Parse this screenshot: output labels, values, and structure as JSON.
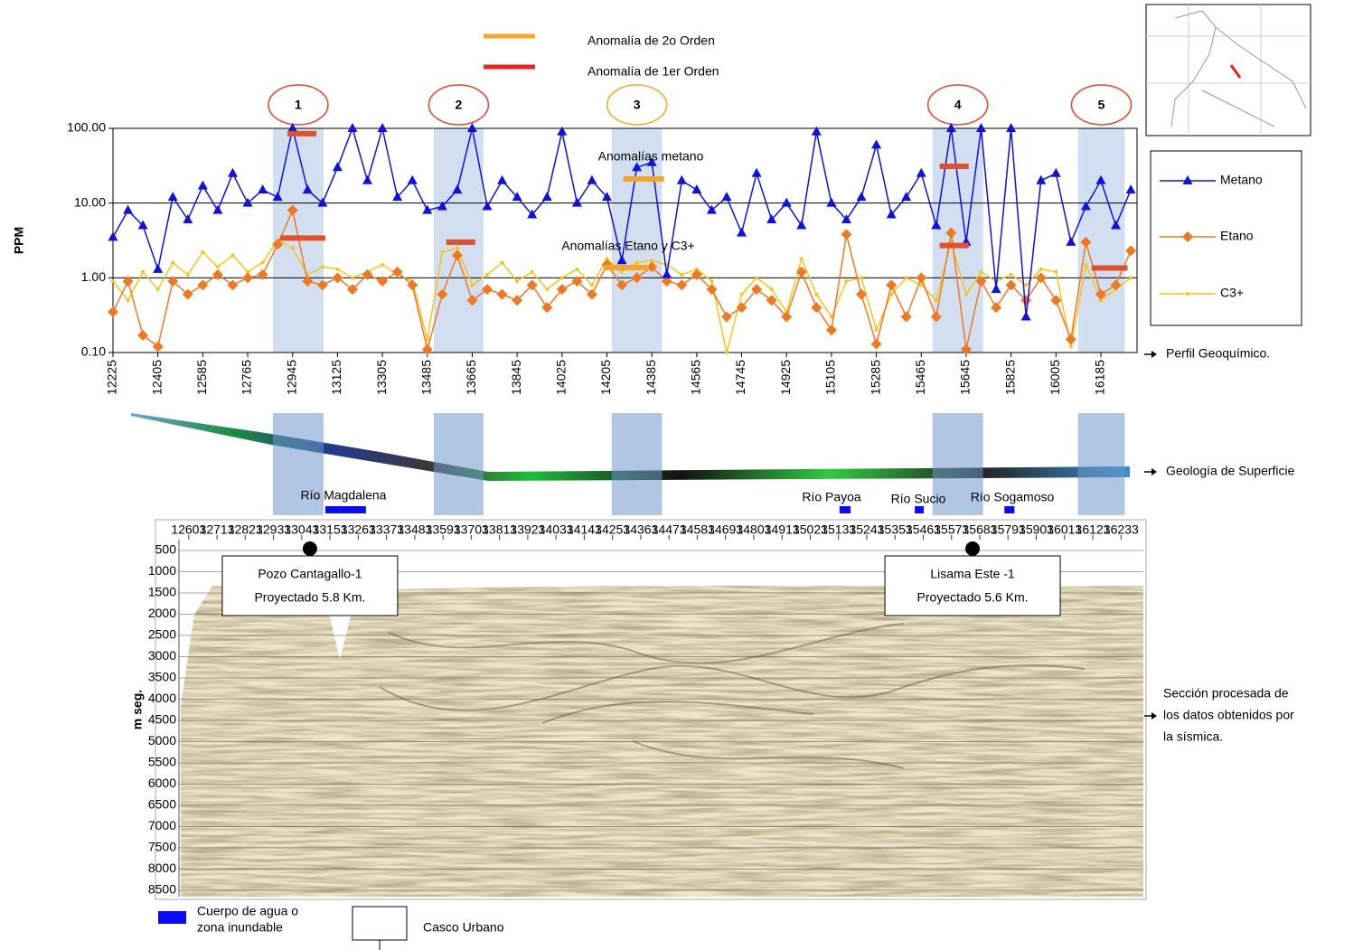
{
  "legend_top": [
    {
      "label": "Anomalía de 2o Orden",
      "color": "#f5a623"
    },
    {
      "label": "Anomalía de 1er Orden",
      "color": "#e8231a"
    }
  ],
  "chart_data": [
    {
      "type": "line",
      "ylabel": "PPM",
      "log_scale": true,
      "grid": true,
      "legend": "right",
      "xlim": [
        12225,
        16330
      ],
      "xticks": [
        12225,
        12405,
        12585,
        12765,
        12945,
        13125,
        13305,
        13485,
        13665,
        13845,
        14025,
        14205,
        14385,
        14565,
        14745,
        14925,
        15105,
        15285,
        15465,
        15645,
        15825,
        16005,
        16185
      ],
      "ylim": [
        0.1,
        100
      ],
      "yticks": [
        {
          "value": 0.1,
          "label": "0.10"
        },
        {
          "value": 1,
          "label": "1.00"
        },
        {
          "value": 10,
          "label": "10.00"
        },
        {
          "value": 100,
          "label": "100.00"
        }
      ],
      "x": [
        12225,
        12285,
        12345,
        12405,
        12465,
        12525,
        12585,
        12645,
        12705,
        12765,
        12825,
        12885,
        12945,
        13005,
        13065,
        13125,
        13185,
        13245,
        13305,
        13365,
        13425,
        13485,
        13545,
        13605,
        13665,
        13725,
        13785,
        13845,
        13905,
        13965,
        14025,
        14085,
        14145,
        14205,
        14265,
        14325,
        14385,
        14445,
        14505,
        14565,
        14625,
        14685,
        14745,
        14805,
        14865,
        14925,
        14985,
        15045,
        15105,
        15165,
        15225,
        15285,
        15345,
        15405,
        15465,
        15525,
        15585,
        15645,
        15705,
        15765,
        15825,
        15885,
        15945,
        16005,
        16065,
        16125,
        16185,
        16245,
        16305
      ],
      "series": [
        {
          "name": "C3+",
          "color": "#f5c518",
          "marker": "circle",
          "values": [
            0.9,
            0.5,
            1.2,
            0.7,
            1.6,
            1.1,
            2.2,
            1.4,
            2.0,
            1.2,
            1.6,
            3.2,
            2.5,
            1.1,
            1.4,
            1.3,
            1.0,
            1.2,
            1.5,
            1.1,
            0.9,
            0.15,
            2.2,
            2.5,
            0.8,
            1.1,
            1.6,
            0.9,
            1.2,
            0.7,
            1.0,
            1.3,
            0.8,
            1.8,
            1.2,
            1.6,
            1.7,
            1.5,
            1.1,
            1.3,
            0.9,
            0.1,
            0.6,
            1.0,
            0.7,
            0.35,
            1.8,
            0.6,
            0.3,
            0.9,
            1.0,
            0.2,
            0.6,
            1.0,
            0.8,
            0.5,
            3.0,
            0.6,
            1.2,
            0.9,
            1.1,
            0.8,
            1.3,
            1.2,
            0.12,
            1.5,
            0.5,
            0.7,
            1.0
          ]
        },
        {
          "name": "Etano",
          "color": "#f07820",
          "marker": "diamond",
          "values": [
            0.35,
            0.9,
            0.17,
            0.12,
            0.9,
            0.6,
            0.8,
            1.1,
            0.8,
            1.0,
            1.1,
            2.8,
            8,
            0.9,
            0.8,
            1.0,
            0.7,
            1.1,
            0.9,
            1.2,
            0.8,
            0.11,
            0.6,
            2.0,
            0.5,
            0.7,
            0.6,
            0.5,
            0.8,
            0.4,
            0.7,
            0.9,
            0.6,
            1.5,
            0.8,
            1.0,
            1.4,
            0.9,
            0.8,
            1.1,
            0.7,
            0.3,
            0.4,
            0.7,
            0.5,
            0.3,
            1.2,
            0.4,
            0.2,
            3.8,
            0.6,
            0.13,
            0.8,
            0.3,
            1.0,
            0.3,
            4.0,
            0.11,
            0.9,
            0.4,
            0.8,
            0.5,
            1.0,
            0.5,
            0.15,
            3.0,
            0.6,
            0.8,
            2.3
          ]
        },
        {
          "name": "Metano",
          "color": "#1010e0",
          "marker": "triangle",
          "values": [
            3.5,
            8,
            5,
            1.3,
            12,
            6,
            17,
            8,
            25,
            10,
            15,
            12,
            100,
            15,
            10,
            30,
            100,
            20,
            100,
            12,
            20,
            8,
            9,
            15,
            100,
            9,
            20,
            12,
            7,
            12,
            90,
            10,
            20,
            12,
            1.7,
            30,
            35,
            1.1,
            20,
            15,
            8,
            12,
            4,
            25,
            6,
            10,
            5,
            90,
            10,
            6,
            12,
            60,
            7,
            12,
            25,
            5,
            100,
            3,
            100,
            0.7,
            100,
            0.3,
            20,
            25,
            3,
            9,
            20,
            5,
            15
          ]
        }
      ],
      "bands": [
        {
          "label": "1",
          "x": [
            12866,
            13069
          ],
          "color": "#e8432a"
        },
        {
          "label": "2",
          "x": [
            13511,
            13710
          ],
          "color": "#e8432a"
        },
        {
          "label": "3",
          "x": [
            14224,
            14426
          ],
          "color": "#f5a623"
        },
        {
          "label": "4",
          "x": [
            15510,
            15713
          ],
          "color": "#e8432a"
        },
        {
          "label": "5",
          "x": [
            16093,
            16281
          ],
          "color": "#e8432a"
        }
      ],
      "anomalies": [
        {
          "x": [
            12924,
            13040
          ],
          "value": 85,
          "color": "#e0502a"
        },
        {
          "x": [
            12895,
            13076
          ],
          "value": 3.4,
          "color": "#e0502a"
        },
        {
          "x": [
            13561,
            13677
          ],
          "value": 3.0,
          "color": "#e0502a"
        },
        {
          "x": [
            14271,
            14434
          ],
          "value": 21,
          "color": "#f5a623"
        },
        {
          "x": [
            14192,
            14373
          ],
          "value": 1.37,
          "color": "#f5a623"
        },
        {
          "x": [
            15539,
            15655
          ],
          "value": 31,
          "color": "#e0502a"
        },
        {
          "x": [
            15539,
            15655
          ],
          "value": 2.7,
          "color": "#e0502a"
        },
        {
          "x": [
            16148,
            16292
          ],
          "value": 1.35,
          "color": "#e0502a"
        }
      ],
      "annotations": [
        "Anomalías metano",
        "Anomalías Etano y C3+"
      ]
    },
    {
      "type": "seismic",
      "ylabel": "m seg.",
      "xlim": [
        12565,
        16320
      ],
      "xticks": [
        12603,
        12713,
        12823,
        12933,
        13043,
        13153,
        13263,
        13373,
        13483,
        13593,
        13703,
        13813,
        13923,
        14033,
        14143,
        14253,
        14363,
        14473,
        14583,
        14693,
        14803,
        14913,
        15023,
        15133,
        15243,
        15353,
        15463,
        15573,
        15683,
        15793,
        15903,
        16013,
        16123,
        16233
      ],
      "ylim": [
        245,
        8650
      ],
      "yticks": [
        500,
        1000,
        1500,
        2000,
        2500,
        3000,
        3500,
        4000,
        4500,
        5000,
        5500,
        6000,
        6500,
        7000,
        7500,
        8000,
        8500
      ],
      "wells": [
        {
          "name": "Pozo Cantagallo-1",
          "note": "Proyectado 5.8 Km.",
          "x": 13075
        },
        {
          "name": "Lisama Este -1",
          "note": "Proyectado 5.6 Km.",
          "x": 15655
        }
      ]
    }
  ],
  "rivers": [
    {
      "name": "Río Magdalena",
      "x": [
        13135,
        13293
      ]
    },
    {
      "name": "Río Payoa",
      "x": [
        15137,
        15180
      ]
    },
    {
      "name": "Río Sucio",
      "x": [
        15430,
        15465
      ]
    },
    {
      "name": "Río Sogamoso",
      "x": [
        15779,
        15818
      ]
    }
  ],
  "side_labels": {
    "perfil": "Perfil Geoquímico.",
    "geologia": "Geología de Superficie",
    "seccion": [
      "Sección procesada de",
      "los datos obtenidos por",
      "la sísmica."
    ]
  },
  "bottom_legend": {
    "water": [
      "Cuerpo de agua o",
      "zona inundable"
    ],
    "water_color": "#0a0aff",
    "urban": "Casco Urbano"
  }
}
